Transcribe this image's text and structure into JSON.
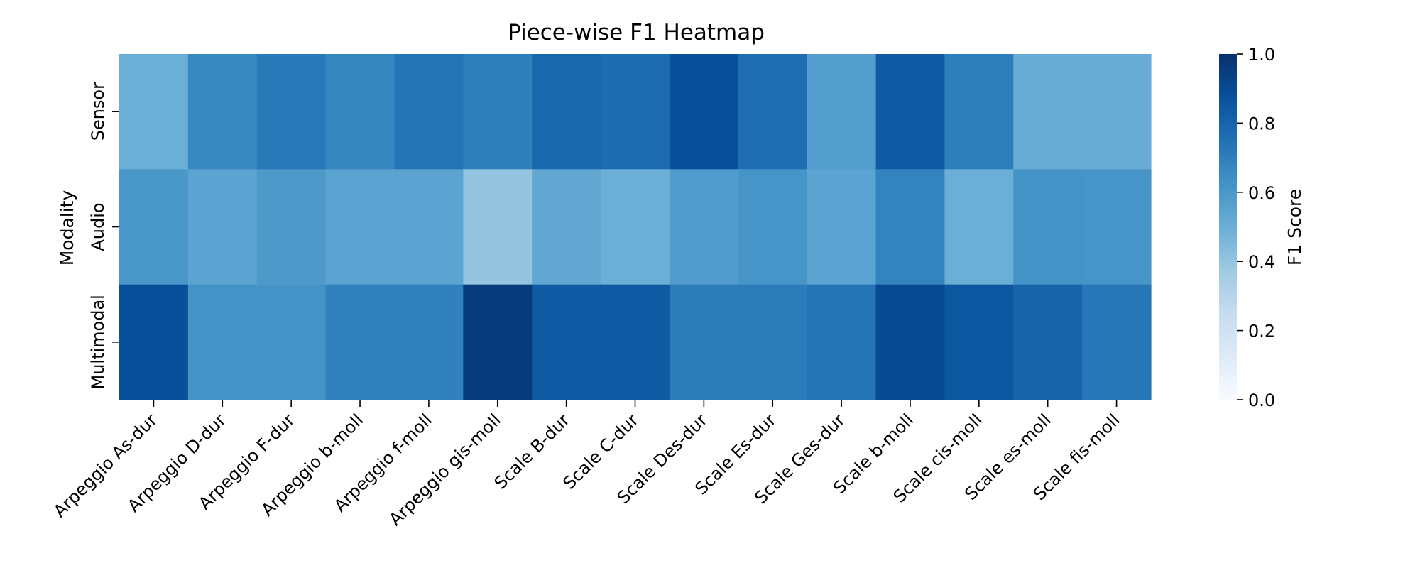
{
  "chart_data": {
    "type": "heatmap",
    "title": "Piece-wise F1 Heatmap",
    "xlabel": "",
    "ylabel": "Modality",
    "colorbar_label": "F1 Score",
    "colormap": "Blues",
    "vmin": 0.0,
    "vmax": 1.0,
    "colorbar_ticks": [
      "0.0",
      "0.2",
      "0.4",
      "0.6",
      "0.8",
      "1.0"
    ],
    "x_categories": [
      "Arpeggio As-dur",
      "Arpeggio D-dur",
      "Arpeggio F-dur",
      "Arpeggio b-moll",
      "Arpeggio f-moll",
      "Arpeggio gis-moll",
      "Scale B-dur",
      "Scale C-dur",
      "Scale Des-dur",
      "Scale Es-dur",
      "Scale Ges-dur",
      "Scale b-moll",
      "Scale cis-moll",
      "Scale es-moll",
      "Scale fis-moll"
    ],
    "y_categories": [
      "Sensor",
      "Audio",
      "Multimodal"
    ],
    "values": [
      [
        0.5,
        0.66,
        0.72,
        0.67,
        0.74,
        0.7,
        0.79,
        0.77,
        0.88,
        0.76,
        0.57,
        0.84,
        0.7,
        0.51,
        0.51
      ],
      [
        0.6,
        0.55,
        0.59,
        0.55,
        0.55,
        0.4,
        0.53,
        0.5,
        0.58,
        0.61,
        0.55,
        0.68,
        0.5,
        0.62,
        0.61
      ],
      [
        0.88,
        0.62,
        0.62,
        0.69,
        0.69,
        0.96,
        0.84,
        0.84,
        0.71,
        0.71,
        0.74,
        0.9,
        0.85,
        0.8,
        0.73
      ]
    ]
  }
}
